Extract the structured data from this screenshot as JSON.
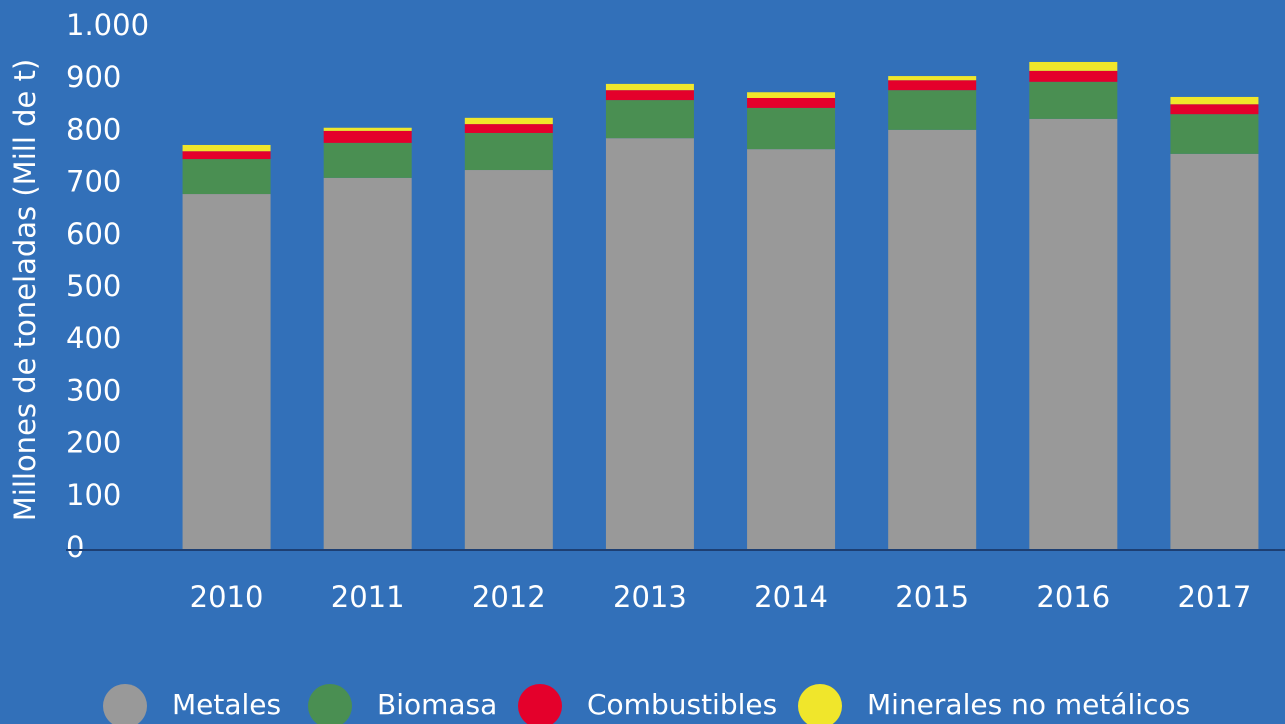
{
  "chart_data": {
    "type": "stacked_bar",
    "y_label": "Millones de toneladas (Mill de t)",
    "categories": [
      "2010",
      "2011",
      "2012",
      "2013",
      "2014",
      "2015",
      "2016",
      "2017"
    ],
    "series": [
      {
        "name": "Metales",
        "color": "#999999",
        "values": [
          680,
          711,
          726,
          787,
          766,
          803,
          824,
          757
        ]
      },
      {
        "name": "Biomasa",
        "color": "#4a8f52",
        "values": [
          67,
          67,
          71,
          73,
          79,
          76,
          71,
          76
        ]
      },
      {
        "name": "Combustibles",
        "color": "#e4002b",
        "values": [
          15,
          23,
          17,
          19,
          19,
          19,
          21,
          19
        ]
      },
      {
        "name": "Minerales no metálicos",
        "color": "#f0e62b",
        "values": [
          12,
          6,
          12,
          12,
          11,
          8,
          17,
          14
        ]
      }
    ],
    "ylim": [
      0,
      1000
    ],
    "yticks": [
      0,
      100,
      200,
      300,
      400,
      500,
      600,
      700,
      800,
      900,
      {
        "value": 1000,
        "label": "1.000"
      }
    ],
    "legend": "bottom"
  }
}
